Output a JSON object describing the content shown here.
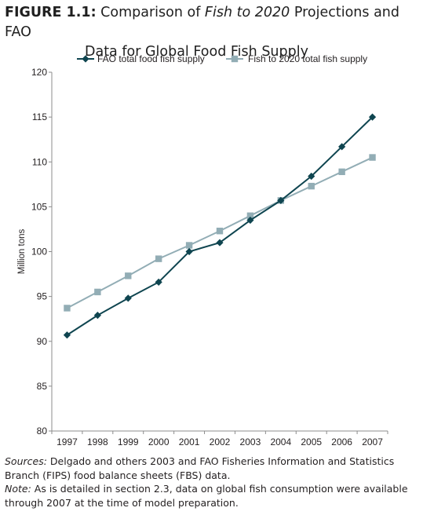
{
  "figure": {
    "label": "FIGURE 1.1:",
    "title_before": "Comparison of ",
    "title_italic": "Fish to 2020",
    "title_after": " Projections and FAO",
    "title_line2": "Data for Global Food Fish Supply"
  },
  "caption": {
    "sources_label": "Sources:",
    "sources_text": " Delgado and others 2003 and FAO Fisheries Information and Statistics Branch (FIPS) food balance sheets (FBS) data.",
    "note_label": "Note:",
    "note_text": " As is detailed in section 2.3, data on global fish consumption were available through 2007 at the time of model preparation."
  },
  "chart_data": {
    "type": "line",
    "title": "",
    "xlabel": "",
    "ylabel": "Million tons",
    "categories": [
      "1997",
      "1998",
      "1999",
      "2000",
      "2001",
      "2002",
      "2003",
      "2004",
      "2005",
      "2006",
      "2007"
    ],
    "ylim": [
      80,
      120
    ],
    "yticks": [
      80,
      85,
      90,
      95,
      100,
      105,
      110,
      115,
      120
    ],
    "grid": false,
    "legend_position": "top",
    "series": [
      {
        "name": "FAO total food fish supply",
        "marker": "diamond",
        "color": "#0f4550",
        "values": [
          90.7,
          92.9,
          94.8,
          96.6,
          100.0,
          101.0,
          103.5,
          105.7,
          108.4,
          111.7,
          115.0
        ]
      },
      {
        "name": "Fish to 2020 total fish supply",
        "marker": "square",
        "color": "#92adb5",
        "values": [
          93.7,
          95.5,
          97.3,
          99.2,
          100.7,
          102.3,
          104.0,
          105.7,
          107.3,
          108.9,
          110.5
        ]
      }
    ]
  }
}
